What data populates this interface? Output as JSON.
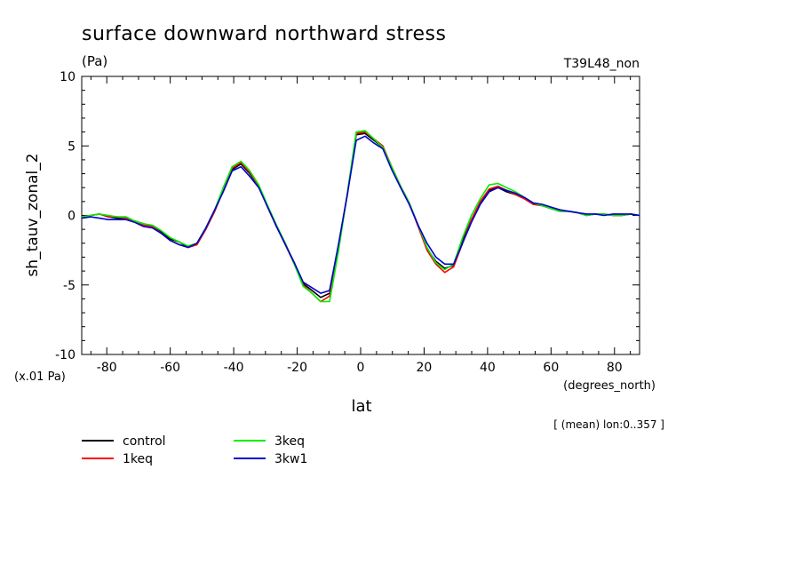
{
  "header": {
    "title": "surface downward northward stress",
    "units": "(Pa)",
    "run_label": "T39L48_non"
  },
  "chart_data": {
    "type": "line",
    "title": "surface downward northward stress",
    "ylabel": "sh_tauv_zonal_2",
    "xlabel": "lat",
    "y_scale_note": "(x.01 Pa)",
    "x_units": "(degrees_north)",
    "subtitle_note": "[ (mean) lon:0..357 ]",
    "xlim": [
      -87.9,
      87.9
    ],
    "ylim": [
      -10,
      10
    ],
    "x_ticks": [
      -80,
      -60,
      -40,
      -20,
      0,
      20,
      40,
      60,
      80
    ],
    "x_tick_labels": [
      "-80",
      "-60",
      "-40",
      "-20",
      "0",
      "20",
      "40",
      "60",
      "80"
    ],
    "y_ticks": [
      -10,
      -5,
      0,
      5,
      10
    ],
    "y_tick_labels": [
      "-10",
      "-5",
      "0",
      "5",
      "10"
    ],
    "x": [
      -87.9,
      -85.1,
      -82.3,
      -79.5,
      -76.7,
      -73.9,
      -71.2,
      -68.4,
      -65.6,
      -62.8,
      -60.0,
      -57.2,
      -54.4,
      -51.6,
      -48.8,
      -46.0,
      -43.3,
      -40.5,
      -37.7,
      -34.9,
      -32.1,
      -29.3,
      -26.5,
      -23.7,
      -20.9,
      -18.1,
      -15.3,
      -12.6,
      -9.8,
      -7.0,
      -4.2,
      -1.4,
      1.4,
      4.2,
      7.0,
      9.8,
      12.6,
      15.3,
      18.1,
      20.9,
      23.7,
      26.5,
      29.3,
      32.1,
      34.9,
      37.7,
      40.5,
      43.3,
      46.0,
      48.8,
      51.6,
      54.4,
      57.2,
      60.0,
      62.8,
      65.6,
      68.4,
      71.2,
      73.9,
      76.7,
      79.5,
      82.3,
      85.1,
      87.9
    ],
    "series": [
      {
        "name": "control",
        "color": "#000000",
        "values": [
          -0.1,
          0.0,
          0.1,
          -0.1,
          -0.2,
          -0.2,
          -0.4,
          -0.6,
          -0.8,
          -1.2,
          -1.7,
          -1.9,
          -2.3,
          -2.1,
          -1.0,
          0.3,
          1.8,
          3.3,
          3.7,
          3.0,
          2.1,
          0.6,
          -0.8,
          -2.1,
          -3.4,
          -4.9,
          -5.4,
          -5.9,
          -5.6,
          -2.2,
          1.5,
          5.8,
          5.9,
          5.4,
          4.9,
          3.4,
          2.1,
          0.9,
          -0.7,
          -2.4,
          -3.3,
          -3.8,
          -3.6,
          -1.8,
          -0.3,
          0.9,
          1.8,
          2.0,
          1.7,
          1.5,
          1.2,
          0.8,
          0.7,
          0.5,
          0.3,
          0.3,
          0.2,
          0.0,
          0.1,
          0.1,
          0.0,
          0.0,
          0.1,
          0.0
        ]
      },
      {
        "name": "1keq",
        "color": "#ff0000",
        "values": [
          -0.1,
          0.0,
          0.1,
          -0.1,
          -0.1,
          -0.2,
          -0.4,
          -0.7,
          -0.8,
          -1.3,
          -1.8,
          -2.1,
          -2.3,
          -2.1,
          -1.0,
          0.3,
          1.9,
          3.4,
          3.8,
          3.1,
          2.1,
          0.6,
          -0.8,
          -2.1,
          -3.5,
          -5.0,
          -5.6,
          -6.2,
          -5.8,
          -2.4,
          1.5,
          5.9,
          6.0,
          5.5,
          5.0,
          3.5,
          2.1,
          0.9,
          -0.8,
          -2.5,
          -3.5,
          -4.1,
          -3.7,
          -2.0,
          -0.3,
          1.0,
          1.9,
          2.1,
          1.8,
          1.5,
          1.2,
          0.8,
          0.7,
          0.5,
          0.3,
          0.3,
          0.2,
          0.0,
          0.1,
          0.1,
          0.0,
          0.0,
          0.1,
          0.0
        ]
      },
      {
        "name": "3keq",
        "color": "#00ee00",
        "values": [
          -0.1,
          0.0,
          0.1,
          0.0,
          -0.1,
          -0.1,
          -0.4,
          -0.6,
          -0.7,
          -1.1,
          -1.6,
          -1.9,
          -2.2,
          -2.0,
          -0.9,
          0.4,
          2.0,
          3.5,
          3.9,
          3.2,
          2.2,
          0.7,
          -0.7,
          -2.0,
          -3.5,
          -5.1,
          -5.6,
          -6.2,
          -6.2,
          -2.6,
          1.6,
          6.0,
          6.1,
          5.5,
          4.9,
          3.5,
          2.1,
          0.9,
          -0.7,
          -2.3,
          -3.4,
          -3.9,
          -3.5,
          -1.6,
          0.0,
          1.2,
          2.2,
          2.3,
          2.0,
          1.7,
          1.3,
          0.9,
          0.7,
          0.5,
          0.3,
          0.3,
          0.2,
          0.0,
          0.1,
          0.1,
          0.0,
          0.0,
          0.1,
          0.0
        ]
      },
      {
        "name": "3kw1",
        "color": "#0000cc",
        "values": [
          -0.2,
          -0.1,
          -0.2,
          -0.3,
          -0.3,
          -0.3,
          -0.5,
          -0.8,
          -0.9,
          -1.3,
          -1.8,
          -2.1,
          -2.3,
          -2.0,
          -0.9,
          0.4,
          1.7,
          3.2,
          3.5,
          2.8,
          2.0,
          0.6,
          -0.8,
          -2.1,
          -3.4,
          -4.8,
          -5.2,
          -5.6,
          -5.4,
          -2.1,
          1.5,
          5.4,
          5.7,
          5.2,
          4.8,
          3.3,
          2.0,
          0.8,
          -0.7,
          -2.0,
          -3.0,
          -3.5,
          -3.5,
          -2.0,
          -0.5,
          0.8,
          1.7,
          2.0,
          1.8,
          1.6,
          1.3,
          0.9,
          0.8,
          0.6,
          0.4,
          0.3,
          0.2,
          0.1,
          0.1,
          0.0,
          0.1,
          0.1,
          0.1,
          0.0
        ]
      }
    ],
    "legend": [
      {
        "name": "control",
        "color": "#000000"
      },
      {
        "name": "1keq",
        "color": "#ff0000"
      },
      {
        "name": "3keq",
        "color": "#00ee00"
      },
      {
        "name": "3kw1",
        "color": "#0000cc"
      }
    ],
    "grid": false,
    "legend_placement": "bottom-left"
  }
}
